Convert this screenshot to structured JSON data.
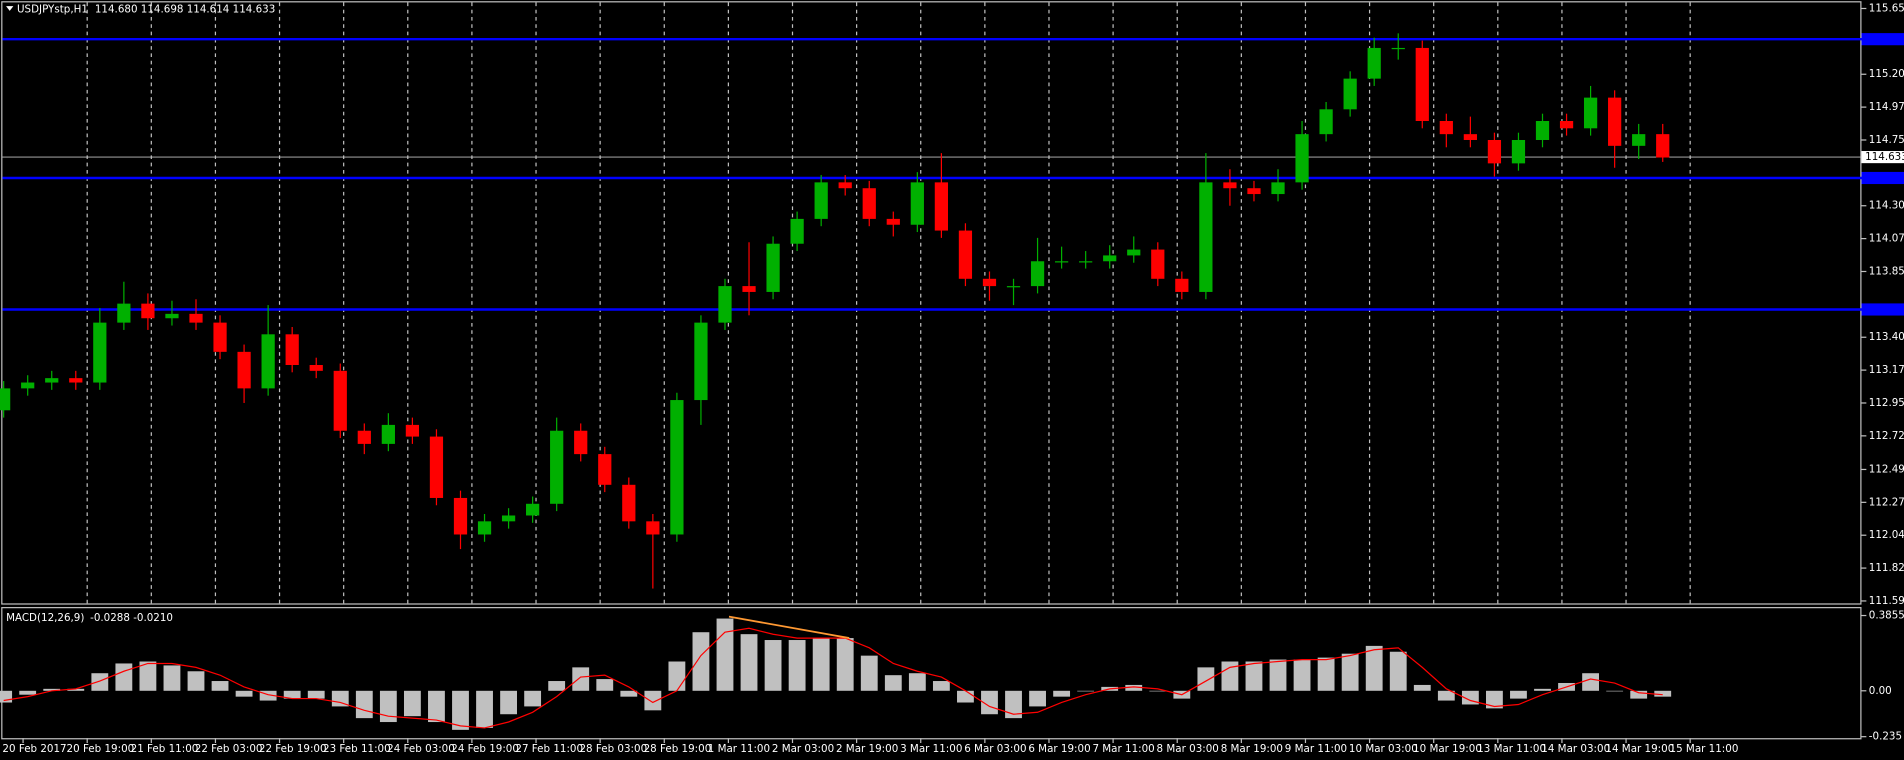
{
  "chart_data": [
    {
      "type": "candlestick",
      "title": "USDJPYstp,H1",
      "subtitle": "114.680 114.698 114.614 114.633",
      "x": [
        0,
        6,
        12,
        18,
        24,
        30,
        36,
        42,
        48,
        54,
        60,
        66,
        72,
        78,
        84,
        90,
        96,
        102,
        108,
        114,
        120,
        126,
        132,
        138,
        144,
        150,
        156,
        162,
        168,
        174,
        180,
        186,
        192,
        198,
        204,
        210,
        216,
        222,
        228,
        234,
        240,
        246,
        252,
        258,
        264,
        270,
        276,
        282,
        288,
        294,
        300,
        306,
        312,
        318,
        324,
        330,
        336,
        342,
        348,
        354,
        360,
        366,
        372,
        378,
        384,
        390,
        396,
        402,
        408,
        414
      ],
      "open": [
        112.9,
        113.05,
        113.09,
        113.12,
        113.09,
        113.5,
        113.63,
        113.53,
        113.56,
        113.5,
        113.3,
        113.05,
        113.42,
        113.21,
        113.17,
        112.76,
        112.67,
        112.8,
        112.72,
        112.3,
        112.05,
        112.14,
        112.18,
        112.26,
        112.76,
        112.6,
        112.39,
        112.14,
        112.05,
        112.97,
        113.5,
        113.75,
        113.71,
        114.04,
        114.21,
        114.46,
        114.42,
        114.21,
        114.17,
        114.46,
        114.13,
        113.8,
        113.75,
        113.75,
        113.92,
        113.92,
        113.92,
        113.96,
        114.0,
        113.8,
        113.71,
        114.46,
        114.42,
        114.38,
        114.46,
        114.79,
        114.96,
        115.17,
        115.38,
        115.38,
        114.88,
        114.79,
        114.75,
        114.59,
        114.75,
        114.88,
        114.83,
        115.04,
        114.71,
        114.79
      ],
      "high": [
        113.1,
        113.14,
        113.17,
        113.17,
        113.6,
        113.78,
        113.7,
        113.65,
        113.66,
        113.55,
        113.35,
        113.62,
        113.47,
        113.26,
        113.22,
        112.81,
        112.88,
        112.85,
        112.77,
        112.35,
        112.19,
        112.23,
        112.31,
        112.85,
        112.81,
        112.65,
        112.44,
        112.19,
        113.02,
        113.55,
        113.8,
        114.05,
        114.09,
        114.26,
        114.51,
        114.51,
        114.47,
        114.26,
        114.53,
        114.66,
        114.18,
        113.85,
        113.8,
        114.08,
        114.02,
        113.99,
        114.03,
        114.09,
        114.05,
        113.85,
        114.66,
        114.55,
        114.47,
        114.55,
        114.88,
        115.01,
        115.22,
        115.45,
        115.48,
        115.43,
        114.93,
        114.91,
        114.8,
        114.8,
        114.93,
        114.93,
        115.12,
        115.09,
        114.86,
        114.86
      ],
      "low": [
        112.85,
        113.0,
        113.04,
        113.04,
        113.04,
        113.45,
        113.45,
        113.48,
        113.45,
        113.25,
        112.95,
        113.0,
        113.16,
        113.12,
        112.71,
        112.6,
        112.62,
        112.67,
        112.25,
        111.95,
        112.0,
        112.09,
        112.13,
        112.21,
        112.55,
        112.34,
        112.09,
        111.68,
        112.0,
        112.8,
        113.45,
        113.55,
        113.66,
        113.99,
        114.16,
        114.37,
        114.16,
        114.09,
        114.12,
        114.08,
        113.75,
        113.65,
        113.62,
        113.7,
        113.87,
        113.87,
        113.87,
        113.91,
        113.75,
        113.66,
        113.66,
        114.3,
        114.33,
        114.33,
        114.41,
        114.74,
        114.91,
        115.12,
        115.3,
        114.83,
        114.7,
        114.7,
        114.5,
        114.54,
        114.7,
        114.78,
        114.78,
        114.56,
        114.62,
        114.6
      ],
      "close": [
        113.05,
        113.09,
        113.12,
        113.09,
        113.5,
        113.63,
        113.53,
        113.56,
        113.5,
        113.3,
        113.05,
        113.42,
        113.21,
        113.17,
        112.76,
        112.67,
        112.8,
        112.72,
        112.3,
        112.05,
        112.14,
        112.18,
        112.26,
        112.76,
        112.6,
        112.39,
        112.14,
        112.05,
        112.97,
        113.5,
        113.75,
        113.71,
        114.04,
        114.21,
        114.46,
        114.42,
        114.21,
        114.17,
        114.46,
        114.13,
        113.8,
        113.75,
        113.75,
        113.92,
        113.92,
        113.92,
        113.96,
        114.0,
        113.8,
        113.71,
        114.46,
        114.42,
        114.38,
        114.46,
        114.79,
        114.96,
        115.17,
        115.38,
        115.38,
        114.88,
        114.79,
        114.75,
        114.59,
        114.75,
        114.88,
        114.83,
        115.04,
        114.71,
        114.79,
        114.63
      ],
      "up_color": "#00b000",
      "down_color": "#ff0000",
      "levels": [
        115.44,
        114.49,
        113.59
      ],
      "level_color": "#0000ff",
      "current_price": 114.633,
      "xlim": [
        0,
        463.6
      ],
      "ylim": [
        111.595,
        115.65
      ],
      "xticks": [
        {
          "value": 0,
          "label": "20 Feb 2017"
        },
        {
          "value": 16,
          "label": "20 Feb 19:00"
        },
        {
          "value": 32,
          "label": "21 Feb 11:00"
        },
        {
          "value": 48,
          "label": "22 Feb 03:00"
        },
        {
          "value": 64,
          "label": "22 Feb 19:00"
        },
        {
          "value": 80,
          "label": "23 Feb 11:00"
        },
        {
          "value": 96,
          "label": "24 Feb 03:00"
        },
        {
          "value": 112,
          "label": "24 Feb 19:00"
        },
        {
          "value": 128,
          "label": "27 Feb 11:00"
        },
        {
          "value": 144,
          "label": "28 Feb 03:00"
        },
        {
          "value": 160,
          "label": "28 Feb 19:00"
        },
        {
          "value": 176,
          "label": "1 Mar 11:00"
        },
        {
          "value": 192,
          "label": "2 Mar 03:00"
        },
        {
          "value": 208,
          "label": "2 Mar 19:00"
        },
        {
          "value": 224,
          "label": "3 Mar 11:00"
        },
        {
          "value": 240,
          "label": "6 Mar 03:00"
        },
        {
          "value": 256,
          "label": "6 Mar 19:00"
        },
        {
          "value": 272,
          "label": "7 Mar 11:00"
        },
        {
          "value": 288,
          "label": "8 Mar 03:00"
        },
        {
          "value": 304,
          "label": "8 Mar 19:00"
        },
        {
          "value": 320,
          "label": "9 Mar 11:00"
        },
        {
          "value": 336,
          "label": "10 Mar 03:00"
        },
        {
          "value": 352,
          "label": "10 Mar 19:00"
        },
        {
          "value": 368,
          "label": "13 Mar 11:00"
        },
        {
          "value": 384,
          "label": "14 Mar 03:00"
        },
        {
          "value": 400,
          "label": "14 Mar 19:00"
        },
        {
          "value": 416,
          "label": "15 Mar 11:00"
        }
      ],
      "yticks": [
        {
          "value": 115.65,
          "label": "115.650"
        },
        {
          "value": 115.2,
          "label": "115.200"
        },
        114.975,
        {
          "value": 114.75,
          "label": "114.750"
        },
        {
          "value": 114.3,
          "label": "114.300"
        },
        114.075,
        {
          "value": 113.85,
          "label": "113.850"
        },
        {
          "value": 113.4,
          "label": "113.400"
        },
        113.175,
        {
          "value": 112.95,
          "label": "112.950"
        },
        112.725,
        112.495,
        {
          "value": 112.27,
          "label": "112.270"
        },
        112.045,
        {
          "value": 111.82,
          "label": "111.820"
        },
        111.595
      ],
      "grid": true
    },
    {
      "type": "macd",
      "title": "MACD(12,26,9)",
      "subtitle": "-0.0288 -0.0210",
      "x": [
        0,
        6,
        12,
        18,
        24,
        30,
        36,
        42,
        48,
        54,
        60,
        66,
        72,
        78,
        84,
        90,
        96,
        102,
        108,
        114,
        120,
        126,
        132,
        138,
        144,
        150,
        156,
        162,
        168,
        174,
        180,
        186,
        192,
        198,
        204,
        210,
        216,
        222,
        228,
        234,
        240,
        246,
        252,
        258,
        264,
        270,
        276,
        282,
        288,
        294,
        300,
        306,
        312,
        318,
        324,
        330,
        336,
        342,
        348,
        354,
        360,
        366,
        372,
        378,
        384,
        390,
        396,
        402,
        408,
        414
      ],
      "values": [
        -0.06,
        -0.02,
        0.01,
        0.01,
        0.09,
        0.14,
        0.15,
        0.13,
        0.1,
        0.05,
        -0.03,
        -0.05,
        -0.04,
        -0.04,
        -0.08,
        -0.14,
        -0.16,
        -0.13,
        -0.16,
        -0.2,
        -0.19,
        -0.12,
        -0.08,
        0.05,
        0.12,
        0.06,
        -0.03,
        -0.1,
        0.15,
        0.3,
        0.37,
        0.29,
        0.26,
        0.26,
        0.27,
        0.27,
        0.18,
        0.08,
        0.09,
        0.05,
        -0.06,
        -0.12,
        -0.14,
        -0.08,
        -0.03,
        0.0,
        0.02,
        0.03,
        0.0,
        -0.04,
        0.12,
        0.15,
        0.15,
        0.16,
        0.16,
        0.17,
        0.19,
        0.23,
        0.2,
        0.03,
        -0.05,
        -0.07,
        -0.09,
        -0.04,
        0.01,
        0.04,
        0.09,
        0.0,
        -0.04,
        -0.03
      ],
      "color": "#c0c0c0",
      "signal": [
        -0.05,
        -0.03,
        0.0,
        0.01,
        0.05,
        0.1,
        0.14,
        0.14,
        0.12,
        0.08,
        0.02,
        -0.02,
        -0.04,
        -0.04,
        -0.06,
        -0.1,
        -0.13,
        -0.14,
        -0.15,
        -0.18,
        -0.19,
        -0.16,
        -0.11,
        -0.03,
        0.07,
        0.08,
        0.02,
        -0.06,
        0.0,
        0.18,
        0.3,
        0.32,
        0.29,
        0.27,
        0.27,
        0.27,
        0.22,
        0.14,
        0.1,
        0.07,
        0.0,
        -0.08,
        -0.12,
        -0.11,
        -0.06,
        -0.02,
        0.01,
        0.02,
        0.01,
        -0.02,
        0.05,
        0.12,
        0.14,
        0.15,
        0.16,
        0.16,
        0.18,
        0.21,
        0.22,
        0.12,
        0.01,
        -0.05,
        -0.08,
        -0.07,
        -0.02,
        0.02,
        0.06,
        0.04,
        -0.01,
        -0.02
      ],
      "signal_color": "#ff0000",
      "trendline": {
        "x": [
          181,
          211
        ],
        "values": [
          0.38,
          0.27
        ],
        "color": "#ff9933"
      },
      "xlim": [
        0,
        463.6
      ],
      "ylim": [
        -0.2425,
        0.429
      ],
      "yticks": [
        0.3855,
        {
          "value": 0,
          "label": "0.00"
        },
        -0.235
      ]
    }
  ]
}
